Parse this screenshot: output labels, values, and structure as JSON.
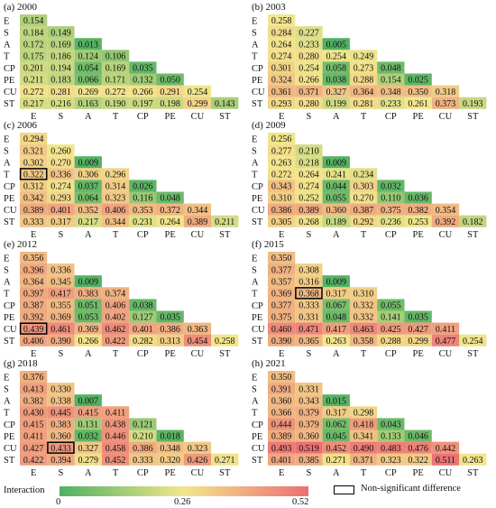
{
  "legend": {
    "title": "Interaction",
    "min_label": "0",
    "mid_label": "0.26",
    "max_label": "0.52",
    "box_label": "Non-significant difference",
    "colors": [
      "#4fb062",
      "#f2e68c",
      "#ec6f74"
    ]
  },
  "chart_data": [
    {
      "type": "heatmap",
      "title": "(a) 2000",
      "vmin": 0,
      "vmax": 0.52,
      "labels": [
        "E",
        "S",
        "A",
        "T",
        "CP",
        "PE",
        "CU",
        "ST"
      ],
      "rows": [
        [
          "0.154"
        ],
        [
          "0.184",
          "0.149"
        ],
        [
          "0.172",
          "0.169",
          "0.013"
        ],
        [
          "0.175",
          "0.186",
          "0.124",
          "0.106"
        ],
        [
          "0.201",
          "0.194",
          "0.054",
          "0.169",
          "0.035"
        ],
        [
          "0.211",
          "0.183",
          "0.066",
          "0.171",
          "0.132",
          "0.050"
        ],
        [
          "0.272",
          "0.281",
          "0.269",
          "0.272",
          "0.266",
          "0.291",
          "0.254"
        ],
        [
          "0.217",
          "0.216",
          "0.163",
          "0.190",
          "0.197",
          "0.198",
          "0.299",
          "0.143"
        ]
      ],
      "nonsignificant": []
    },
    {
      "type": "heatmap",
      "title": "(b) 2003",
      "vmin": 0,
      "vmax": 0.52,
      "labels": [
        "E",
        "S",
        "A",
        "T",
        "CP",
        "PE",
        "CU",
        "ST"
      ],
      "rows": [
        [
          "0.258"
        ],
        [
          "0.284",
          "0.227"
        ],
        [
          "0.264",
          "0.233",
          "0.005"
        ],
        [
          "0.274",
          "0.280",
          "0.254",
          "0.249"
        ],
        [
          "0.301",
          "0.254",
          "0.058",
          "0.273",
          "0.048"
        ],
        [
          "0.324",
          "0.266",
          "0.038",
          "0.288",
          "0.154",
          "0.025"
        ],
        [
          "0.361",
          "0.371",
          "0.327",
          "0.364",
          "0.348",
          "0.350",
          "0.318"
        ],
        [
          "0.293",
          "0.280",
          "0.199",
          "0.281",
          "0.233",
          "0.261",
          "0.373",
          "0.193"
        ]
      ],
      "nonsignificant": []
    },
    {
      "type": "heatmap",
      "title": "(c) 2006",
      "vmin": 0,
      "vmax": 0.52,
      "labels": [
        "E",
        "S",
        "A",
        "T",
        "CP",
        "PE",
        "CU",
        "ST"
      ],
      "rows": [
        [
          "0.294"
        ],
        [
          "0.321",
          "0.260"
        ],
        [
          "0.302",
          "0.270",
          "0.009"
        ],
        [
          "0.322",
          "0.336",
          "0.306",
          "0.296"
        ],
        [
          "0.312",
          "0.274",
          "0.037",
          "0.314",
          "0.026"
        ],
        [
          "0.342",
          "0.293",
          "0.064",
          "0.323",
          "0.116",
          "0.048"
        ],
        [
          "0.389",
          "0.401",
          "0.352",
          "0.406",
          "0.353",
          "0.372",
          "0.344"
        ],
        [
          "0.333",
          "0.317",
          "0.217",
          "0.344",
          "0.231",
          "0.264",
          "0.389",
          "0.211"
        ]
      ],
      "nonsignificant": [
        [
          3,
          0
        ]
      ]
    },
    {
      "type": "heatmap",
      "title": "(d) 2009",
      "vmin": 0,
      "vmax": 0.52,
      "labels": [
        "E",
        "S",
        "A",
        "T",
        "CP",
        "PE",
        "CU",
        "ST"
      ],
      "rows": [
        [
          "0.256"
        ],
        [
          "0.277",
          "0.210"
        ],
        [
          "0.263",
          "0.218",
          "0.009"
        ],
        [
          "0.272",
          "0.264",
          "0.241",
          "0.234"
        ],
        [
          "0.343",
          "0.274",
          "0.044",
          "0.303",
          "0.032"
        ],
        [
          "0.310",
          "0.252",
          "0.055",
          "0.270",
          "0.110",
          "0.036"
        ],
        [
          "0.386",
          "0.389",
          "0.360",
          "0.387",
          "0.375",
          "0.382",
          "0.354"
        ],
        [
          "0.305",
          "0.268",
          "0.189",
          "0.292",
          "0.236",
          "0.253",
          "0.392",
          "0.182"
        ]
      ],
      "nonsignificant": []
    },
    {
      "type": "heatmap",
      "title": "(e) 2012",
      "vmin": 0,
      "vmax": 0.52,
      "labels": [
        "E",
        "S",
        "A",
        "T",
        "CP",
        "PE",
        "CU",
        "ST"
      ],
      "rows": [
        [
          "0.356"
        ],
        [
          "0.396",
          "0.336"
        ],
        [
          "0.364",
          "0.345",
          "0.009"
        ],
        [
          "0.397",
          "0.417",
          "0.383",
          "0.374"
        ],
        [
          "0.387",
          "0.355",
          "0.051",
          "0.406",
          "0.038"
        ],
        [
          "0.392",
          "0.369",
          "0.053",
          "0.402",
          "0.127",
          "0.035"
        ],
        [
          "0.439",
          "0.461",
          "0.369",
          "0.462",
          "0.401",
          "0.386",
          "0.363"
        ],
        [
          "0.406",
          "0.390",
          "0.266",
          "0.422",
          "0.282",
          "0.313",
          "0.454",
          "0.258"
        ]
      ],
      "nonsignificant": [
        [
          6,
          0
        ]
      ]
    },
    {
      "type": "heatmap",
      "title": "(f) 2015",
      "vmin": 0,
      "vmax": 0.52,
      "labels": [
        "E",
        "S",
        "A",
        "T",
        "CP",
        "PE",
        "CU",
        "ST"
      ],
      "rows": [
        [
          "0.350"
        ],
        [
          "0.377",
          "0.308"
        ],
        [
          "0.357",
          "0.316",
          "0.009"
        ],
        [
          "0.369",
          "0.368",
          "0.317",
          "0.310"
        ],
        [
          "0.377",
          "0.333",
          "0.067",
          "0.332",
          "0.055"
        ],
        [
          "0.375",
          "0.331",
          "0.048",
          "0.332",
          "0.141",
          "0.035"
        ],
        [
          "0.460",
          "0.471",
          "0.417",
          "0.463",
          "0.425",
          "0.427",
          "0.411"
        ],
        [
          "0.390",
          "0.365",
          "0.263",
          "0.358",
          "0.288",
          "0.299",
          "0.477",
          "0.254"
        ]
      ],
      "nonsignificant": [
        [
          3,
          1
        ]
      ]
    },
    {
      "type": "heatmap",
      "title": "(g) 2018",
      "vmin": 0,
      "vmax": 0.52,
      "labels": [
        "E",
        "S",
        "A",
        "T",
        "CP",
        "PE",
        "CU",
        "ST"
      ],
      "rows": [
        [
          "0.376"
        ],
        [
          "0.413",
          "0.330"
        ],
        [
          "0.382",
          "0.338",
          "0.007"
        ],
        [
          "0.430",
          "0.445",
          "0.415",
          "0.411"
        ],
        [
          "0.415",
          "0.383",
          "0.131",
          "0.438",
          "0.121"
        ],
        [
          "0.411",
          "0.360",
          "0.032",
          "0.446",
          "0.210",
          "0.018"
        ],
        [
          "0.427",
          "0.433",
          "0.327",
          "0.458",
          "0.386",
          "0.348",
          "0.323"
        ],
        [
          "0.422",
          "0.394",
          "0.279",
          "0.452",
          "0.333",
          "0.320",
          "0.426",
          "0.271"
        ]
      ],
      "nonsignificant": [
        [
          6,
          1
        ]
      ]
    },
    {
      "type": "heatmap",
      "title": "(h) 2021",
      "vmin": 0,
      "vmax": 0.52,
      "labels": [
        "E",
        "S",
        "A",
        "T",
        "CP",
        "PE",
        "CU",
        "ST"
      ],
      "rows": [
        [
          "0.350"
        ],
        [
          "0.391",
          "0.331"
        ],
        [
          "0.360",
          "0.343",
          "0.015"
        ],
        [
          "0.366",
          "0.379",
          "0.317",
          "0.298"
        ],
        [
          "0.444",
          "0.379",
          "0.062",
          "0.418",
          "0.043"
        ],
        [
          "0.389",
          "0.360",
          "0.045",
          "0.341",
          "0.133",
          "0.046"
        ],
        [
          "0.493",
          "0.519",
          "0.452",
          "0.490",
          "0.483",
          "0.476",
          "0.442"
        ],
        [
          "0.401",
          "0.385",
          "0.271",
          "0.371",
          "0.323",
          "0.322",
          "0.511",
          "0.263"
        ]
      ],
      "nonsignificant": []
    }
  ]
}
